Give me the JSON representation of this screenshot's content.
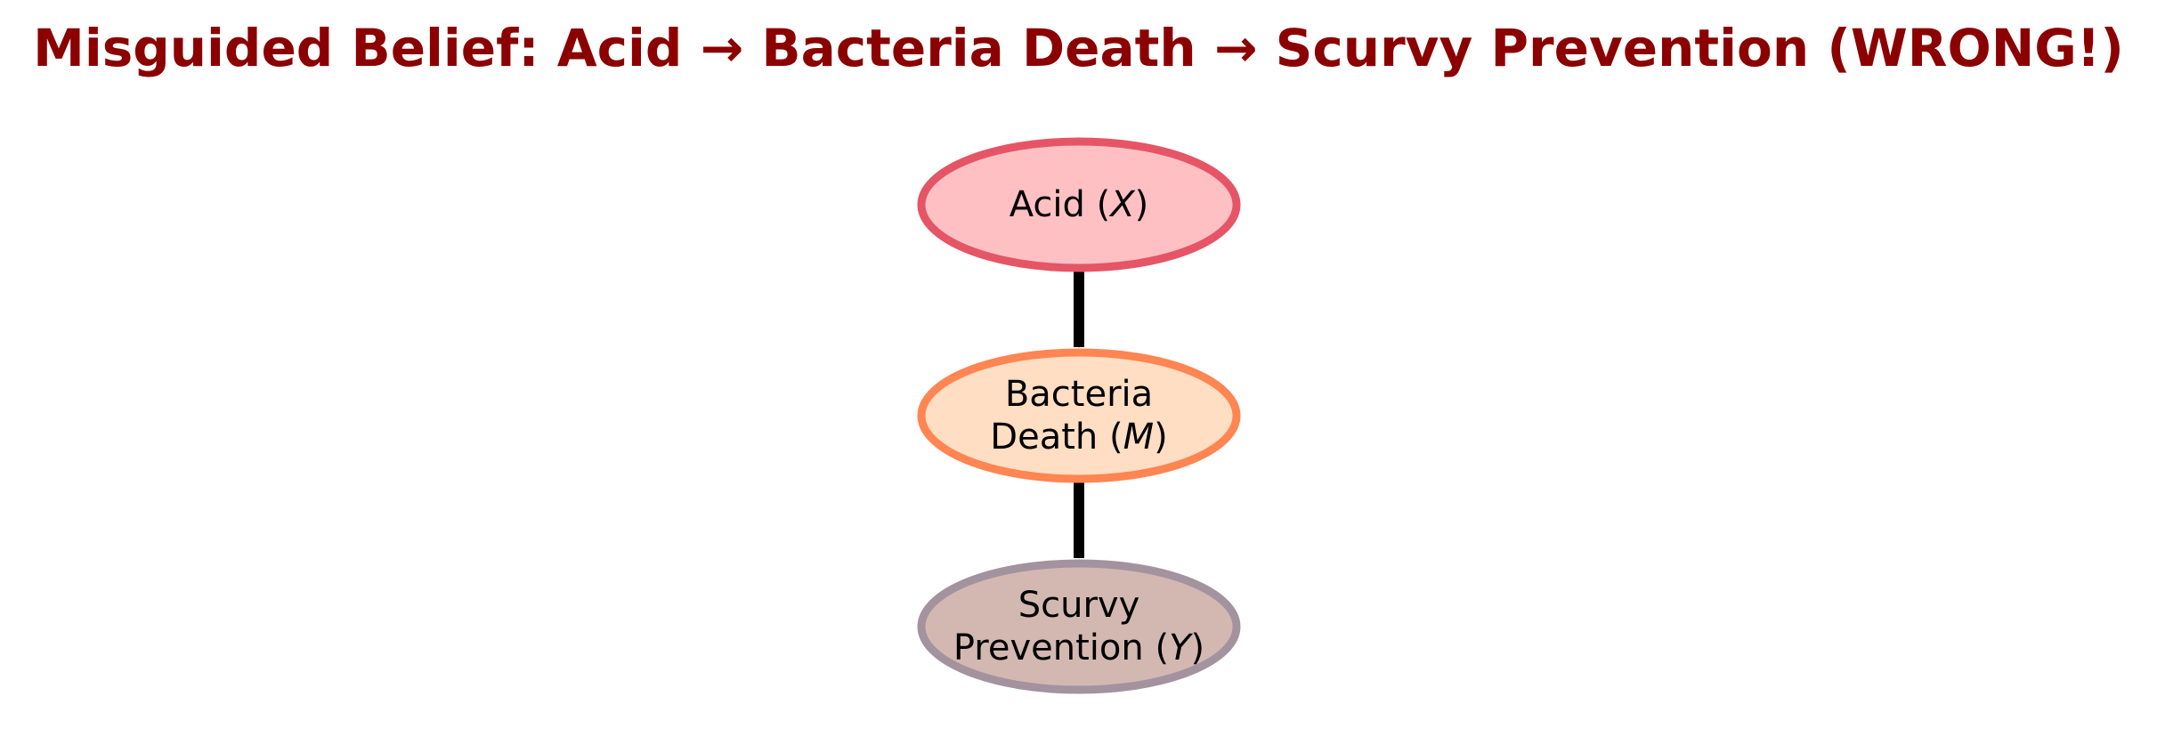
{
  "title": "Misguided Belief: Acid → Bacteria Death → Scurvy Prevention (WRONG!)",
  "colors": {
    "title": "#8b0000",
    "arrow": "#000000"
  },
  "nodes": [
    {
      "id": "acid",
      "lines": [
        {
          "text": "Acid (",
          "var": "X",
          "close": ")"
        }
      ],
      "fill": "#ffc0c4",
      "stroke": "#e55566"
    },
    {
      "id": "bacteria-death",
      "lines": [
        {
          "text": "Bacteria",
          "var": "",
          "close": ""
        },
        {
          "text": "Death (",
          "var": "M",
          "close": ")"
        }
      ],
      "fill": "#ffdec3",
      "stroke": "#ff8552"
    },
    {
      "id": "scurvy-prevention",
      "lines": [
        {
          "text": "Scurvy",
          "var": "",
          "close": ""
        },
        {
          "text": "Prevention (",
          "var": "Y",
          "close": ")"
        }
      ],
      "fill": "#d3b8b1",
      "stroke": "#a2939f"
    }
  ],
  "edges": [
    {
      "from": "acid",
      "to": "bacteria-death"
    },
    {
      "from": "bacteria-death",
      "to": "scurvy-prevention"
    }
  ]
}
